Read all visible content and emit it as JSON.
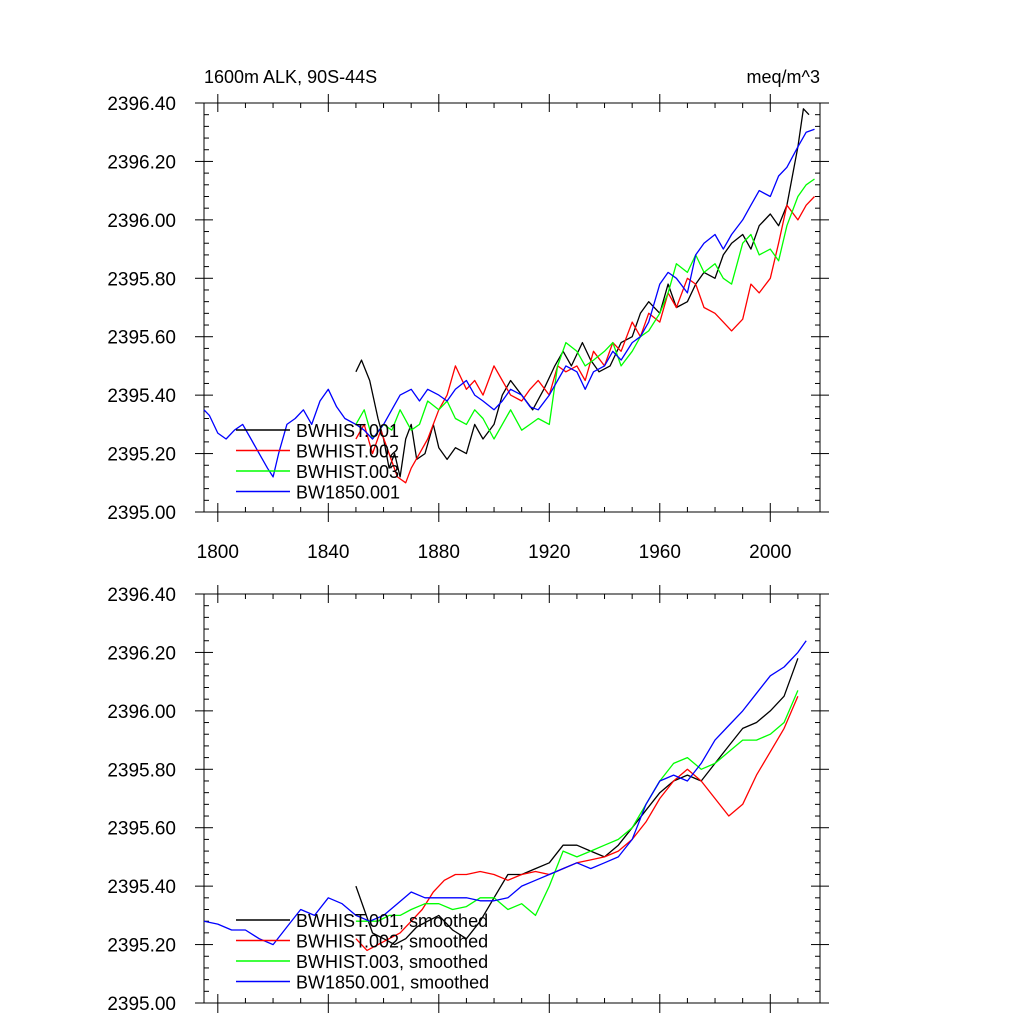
{
  "colors": {
    "BWHIST.001": "#000000",
    "BWHIST.002": "#ff0000",
    "BWHIST.003": "#00ff00",
    "BW1850.001": "#0000ff"
  },
  "chart_data": [
    {
      "type": "line",
      "title_left": "1600m ALK, 90S-44S",
      "title_right": "meq/m^3",
      "xlim": [
        1795,
        2018
      ],
      "ylim": [
        2395.0,
        2396.4
      ],
      "xticks": [
        1800,
        1840,
        1880,
        1920,
        1960,
        2000
      ],
      "xtick_labels": [
        "1800",
        "1840",
        "1880",
        "1920",
        "1960",
        "2000"
      ],
      "yticks": [
        2395.0,
        2395.2,
        2395.4,
        2395.6,
        2395.8,
        2396.0,
        2396.2,
        2396.4
      ],
      "ytick_labels": [
        "2395.00",
        "2395.20",
        "2395.40",
        "2395.60",
        "2395.80",
        "2396.00",
        "2396.20",
        "2396.40"
      ],
      "legend_position": "lower-left",
      "series": [
        {
          "name": "BWHIST.001",
          "color": "#000000",
          "x": [
            1850,
            1852,
            1855,
            1858,
            1860,
            1862,
            1864,
            1866,
            1868,
            1870,
            1872,
            1875,
            1878,
            1880,
            1883,
            1886,
            1890,
            1893,
            1896,
            1900,
            1903,
            1906,
            1910,
            1914,
            1918,
            1922,
            1925,
            1928,
            1932,
            1935,
            1938,
            1942,
            1946,
            1950,
            1953,
            1956,
            1960,
            1963,
            1966,
            1970,
            1973,
            1976,
            1980,
            1983,
            1986,
            1990,
            1993,
            1996,
            2000,
            2003,
            2006,
            2010,
            2012,
            2014
          ],
          "y": [
            2395.48,
            2395.52,
            2395.45,
            2395.32,
            2395.25,
            2395.15,
            2395.2,
            2395.12,
            2395.25,
            2395.3,
            2395.18,
            2395.2,
            2395.3,
            2395.22,
            2395.18,
            2395.22,
            2395.2,
            2395.3,
            2395.25,
            2395.3,
            2395.4,
            2395.45,
            2395.4,
            2395.35,
            2395.42,
            2395.5,
            2395.55,
            2395.5,
            2395.58,
            2395.52,
            2395.48,
            2395.5,
            2395.58,
            2395.6,
            2395.68,
            2395.72,
            2395.68,
            2395.78,
            2395.7,
            2395.72,
            2395.78,
            2395.82,
            2395.8,
            2395.88,
            2395.92,
            2395.95,
            2395.9,
            2395.98,
            2396.02,
            2395.98,
            2396.05,
            2396.25,
            2396.38,
            2396.36
          ]
        },
        {
          "name": "BWHIST.002",
          "color": "#ff0000",
          "x": [
            1850,
            1853,
            1856,
            1859,
            1862,
            1865,
            1868,
            1870,
            1873,
            1876,
            1880,
            1883,
            1886,
            1890,
            1893,
            1896,
            1900,
            1903,
            1906,
            1910,
            1913,
            1916,
            1920,
            1923,
            1926,
            1930,
            1933,
            1936,
            1940,
            1943,
            1946,
            1950,
            1953,
            1956,
            1960,
            1963,
            1966,
            1970,
            1973,
            1976,
            1980,
            1983,
            1986,
            1990,
            1993,
            1996,
            2000,
            2003,
            2006,
            2010,
            2013,
            2016
          ],
          "y": [
            2395.25,
            2395.3,
            2395.2,
            2395.28,
            2395.2,
            2395.12,
            2395.1,
            2395.15,
            2395.2,
            2395.25,
            2395.35,
            2395.4,
            2395.5,
            2395.42,
            2395.45,
            2395.4,
            2395.5,
            2395.45,
            2395.4,
            2395.38,
            2395.42,
            2395.45,
            2395.4,
            2395.5,
            2395.48,
            2395.5,
            2395.45,
            2395.55,
            2395.5,
            2395.58,
            2395.55,
            2395.65,
            2395.6,
            2395.68,
            2395.65,
            2395.75,
            2395.7,
            2395.8,
            2395.78,
            2395.7,
            2395.68,
            2395.65,
            2395.62,
            2395.66,
            2395.78,
            2395.75,
            2395.8,
            2395.92,
            2396.05,
            2396.0,
            2396.05,
            2396.08
          ]
        },
        {
          "name": "BWHIST.003",
          "color": "#00ff00",
          "x": [
            1850,
            1853,
            1856,
            1860,
            1863,
            1866,
            1870,
            1873,
            1876,
            1880,
            1883,
            1886,
            1890,
            1893,
            1896,
            1900,
            1903,
            1906,
            1910,
            1913,
            1916,
            1920,
            1923,
            1926,
            1930,
            1933,
            1936,
            1940,
            1943,
            1946,
            1950,
            1953,
            1956,
            1960,
            1963,
            1966,
            1970,
            1973,
            1976,
            1980,
            1983,
            1986,
            1990,
            1993,
            1996,
            2000,
            2003,
            2006,
            2010,
            2013,
            2016
          ],
          "y": [
            2395.3,
            2395.35,
            2395.25,
            2395.3,
            2395.28,
            2395.35,
            2395.28,
            2395.3,
            2395.38,
            2395.35,
            2395.38,
            2395.32,
            2395.3,
            2395.35,
            2395.32,
            2395.25,
            2395.3,
            2395.35,
            2395.28,
            2395.3,
            2395.32,
            2395.3,
            2395.5,
            2395.58,
            2395.55,
            2395.5,
            2395.52,
            2395.55,
            2395.58,
            2395.5,
            2395.55,
            2395.6,
            2395.62,
            2395.68,
            2395.75,
            2395.85,
            2395.82,
            2395.88,
            2395.82,
            2395.85,
            2395.8,
            2395.78,
            2395.92,
            2395.95,
            2395.88,
            2395.9,
            2395.86,
            2395.98,
            2396.08,
            2396.12,
            2396.14
          ]
        },
        {
          "name": "BW1850.001",
          "color": "#0000ff",
          "x": [
            1795,
            1797,
            1800,
            1803,
            1806,
            1809,
            1812,
            1815,
            1818,
            1820,
            1822,
            1825,
            1828,
            1831,
            1834,
            1837,
            1840,
            1843,
            1846,
            1850,
            1853,
            1856,
            1860,
            1863,
            1866,
            1870,
            1873,
            1876,
            1880,
            1883,
            1886,
            1890,
            1893,
            1896,
            1900,
            1903,
            1906,
            1910,
            1913,
            1916,
            1920,
            1923,
            1926,
            1930,
            1933,
            1936,
            1940,
            1943,
            1946,
            1950,
            1953,
            1956,
            1960,
            1963,
            1966,
            1970,
            1973,
            1976,
            1980,
            1983,
            1986,
            1990,
            1993,
            1996,
            2000,
            2003,
            2006,
            2010,
            2013,
            2016
          ],
          "y": [
            2395.35,
            2395.33,
            2395.27,
            2395.25,
            2395.28,
            2395.3,
            2395.25,
            2395.2,
            2395.15,
            2395.12,
            2395.2,
            2395.3,
            2395.32,
            2395.35,
            2395.3,
            2395.38,
            2395.42,
            2395.36,
            2395.32,
            2395.3,
            2395.28,
            2395.25,
            2395.3,
            2395.35,
            2395.4,
            2395.42,
            2395.38,
            2395.42,
            2395.4,
            2395.38,
            2395.42,
            2395.45,
            2395.4,
            2395.38,
            2395.35,
            2395.38,
            2395.42,
            2395.4,
            2395.36,
            2395.35,
            2395.4,
            2395.45,
            2395.5,
            2395.48,
            2395.42,
            2395.48,
            2395.5,
            2395.55,
            2395.52,
            2395.58,
            2395.6,
            2395.65,
            2395.78,
            2395.82,
            2395.8,
            2395.75,
            2395.88,
            2395.92,
            2395.95,
            2395.9,
            2395.95,
            2396.0,
            2396.05,
            2396.1,
            2396.08,
            2396.15,
            2396.18,
            2396.25,
            2396.3,
            2396.31
          ]
        }
      ]
    },
    {
      "type": "line",
      "xlim": [
        1795,
        2018
      ],
      "ylim": [
        2395.0,
        2396.4
      ],
      "xticks": [
        1800,
        1840,
        1880,
        1920,
        1960,
        2000
      ],
      "yticks": [
        2395.0,
        2395.2,
        2395.4,
        2395.6,
        2395.8,
        2396.0,
        2396.2,
        2396.4
      ],
      "ytick_labels": [
        "2395.00",
        "2395.20",
        "2395.40",
        "2395.60",
        "2395.80",
        "2396.00",
        "2396.20",
        "2396.40"
      ],
      "legend_position": "lower-left",
      "series": [
        {
          "name": "BWHIST.001, smoothed",
          "color": "#000000",
          "x": [
            1850,
            1853,
            1856,
            1860,
            1864,
            1868,
            1872,
            1876,
            1880,
            1885,
            1890,
            1895,
            1900,
            1905,
            1910,
            1915,
            1920,
            1925,
            1930,
            1935,
            1940,
            1945,
            1950,
            1955,
            1960,
            1965,
            1970,
            1975,
            1980,
            1985,
            1990,
            1995,
            2000,
            2005,
            2010
          ],
          "y": [
            2395.4,
            2395.32,
            2395.24,
            2395.22,
            2395.2,
            2395.22,
            2395.26,
            2395.28,
            2395.3,
            2395.25,
            2395.22,
            2395.28,
            2395.36,
            2395.44,
            2395.44,
            2395.46,
            2395.48,
            2395.54,
            2395.54,
            2395.52,
            2395.5,
            2395.54,
            2395.6,
            2395.66,
            2395.72,
            2395.76,
            2395.78,
            2395.76,
            2395.82,
            2395.88,
            2395.94,
            2395.96,
            2396.0,
            2396.05,
            2396.18
          ]
        },
        {
          "name": "BWHIST.002, smoothed",
          "color": "#ff0000",
          "x": [
            1850,
            1854,
            1858,
            1862,
            1866,
            1870,
            1874,
            1878,
            1882,
            1886,
            1890,
            1895,
            1900,
            1905,
            1910,
            1915,
            1920,
            1925,
            1930,
            1935,
            1940,
            1945,
            1950,
            1955,
            1960,
            1965,
            1970,
            1975,
            1980,
            1985,
            1990,
            1995,
            2000,
            2005,
            2010
          ],
          "y": [
            2395.22,
            2395.18,
            2395.2,
            2395.22,
            2395.24,
            2395.28,
            2395.32,
            2395.38,
            2395.42,
            2395.44,
            2395.44,
            2395.45,
            2395.44,
            2395.42,
            2395.44,
            2395.45,
            2395.44,
            2395.46,
            2395.48,
            2395.49,
            2395.5,
            2395.52,
            2395.56,
            2395.62,
            2395.7,
            2395.76,
            2395.8,
            2395.76,
            2395.7,
            2395.64,
            2395.68,
            2395.78,
            2395.86,
            2395.94,
            2396.05
          ]
        },
        {
          "name": "BWHIST.003, smoothed",
          "color": "#00ff00",
          "x": [
            1850,
            1854,
            1858,
            1862,
            1866,
            1870,
            1875,
            1880,
            1885,
            1890,
            1895,
            1900,
            1905,
            1910,
            1915,
            1920,
            1925,
            1930,
            1935,
            1940,
            1945,
            1950,
            1955,
            1960,
            1965,
            1970,
            1975,
            1980,
            1985,
            1990,
            1995,
            2000,
            2005,
            2010
          ],
          "y": [
            2395.28,
            2395.28,
            2395.28,
            2395.3,
            2395.3,
            2395.32,
            2395.34,
            2395.34,
            2395.32,
            2395.33,
            2395.36,
            2395.36,
            2395.32,
            2395.34,
            2395.3,
            2395.4,
            2395.52,
            2395.5,
            2395.52,
            2395.54,
            2395.56,
            2395.6,
            2395.68,
            2395.76,
            2395.82,
            2395.84,
            2395.8,
            2395.82,
            2395.86,
            2395.9,
            2395.9,
            2395.92,
            2395.96,
            2396.07
          ]
        },
        {
          "name": "BW1850.001, smoothed",
          "color": "#0000ff",
          "x": [
            1795,
            1800,
            1805,
            1810,
            1815,
            1820,
            1825,
            1830,
            1835,
            1840,
            1845,
            1850,
            1855,
            1860,
            1865,
            1870,
            1875,
            1880,
            1885,
            1890,
            1895,
            1900,
            1905,
            1910,
            1915,
            1920,
            1925,
            1930,
            1935,
            1940,
            1945,
            1950,
            1955,
            1960,
            1965,
            1970,
            1975,
            1980,
            1985,
            1990,
            1995,
            2000,
            2005,
            2010,
            2013
          ],
          "y": [
            2395.28,
            2395.27,
            2395.25,
            2395.25,
            2395.22,
            2395.2,
            2395.26,
            2395.32,
            2395.3,
            2395.36,
            2395.34,
            2395.3,
            2395.28,
            2395.3,
            2395.34,
            2395.38,
            2395.36,
            2395.36,
            2395.36,
            2395.36,
            2395.35,
            2395.35,
            2395.36,
            2395.4,
            2395.42,
            2395.44,
            2395.46,
            2395.48,
            2395.46,
            2395.48,
            2395.5,
            2395.56,
            2395.68,
            2395.76,
            2395.78,
            2395.76,
            2395.82,
            2395.9,
            2395.95,
            2396.0,
            2396.06,
            2396.12,
            2396.15,
            2396.2,
            2396.24
          ]
        }
      ]
    }
  ]
}
